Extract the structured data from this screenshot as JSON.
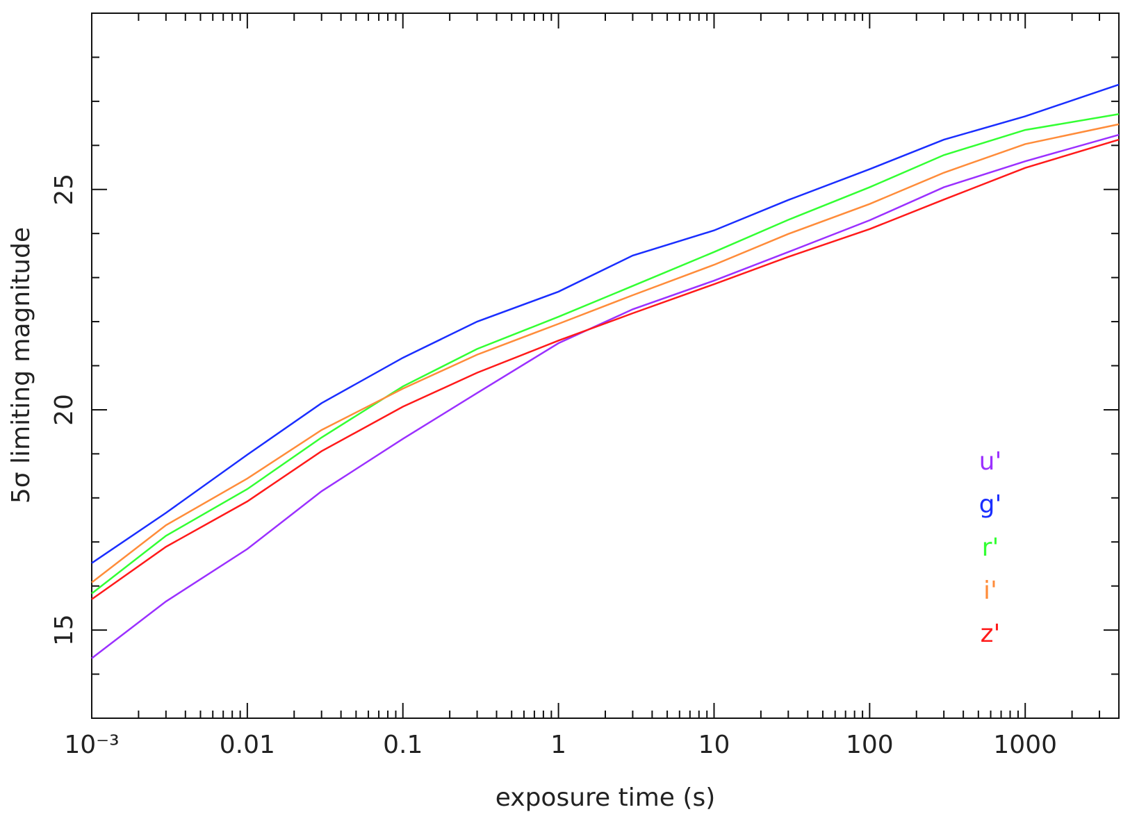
{
  "chart_data": {
    "type": "line",
    "x_label": "exposure time (s)",
    "y_label": "5σ limiting magnitude",
    "x": [
      0.001,
      0.003,
      0.01,
      0.03,
      0.1,
      0.3,
      1,
      3,
      10,
      30,
      100,
      300,
      1000,
      4000
    ],
    "series": [
      {
        "name": "u'",
        "color": "#9b30ff",
        "values": [
          14.36,
          15.65,
          16.84,
          18.15,
          19.34,
          20.38,
          21.51,
          22.28,
          22.93,
          23.58,
          24.3,
          25.05,
          25.64,
          26.24
        ]
      },
      {
        "name": "g'",
        "color": "#1a2eff",
        "values": [
          16.52,
          17.66,
          18.98,
          20.15,
          21.18,
          22.0,
          22.68,
          23.5,
          24.07,
          24.76,
          25.46,
          26.13,
          26.66,
          27.38
        ]
      },
      {
        "name": "r'",
        "color": "#33ff33",
        "values": [
          15.83,
          17.14,
          18.2,
          19.37,
          20.53,
          21.38,
          22.11,
          22.81,
          23.58,
          24.31,
          25.05,
          25.78,
          26.35,
          26.71
        ]
      },
      {
        "name": "i'",
        "color": "#ff8c3a",
        "values": [
          16.08,
          17.38,
          18.44,
          19.54,
          20.48,
          21.25,
          21.95,
          22.6,
          23.29,
          23.99,
          24.67,
          25.38,
          26.03,
          26.48
        ]
      },
      {
        "name": "z'",
        "color": "#ff1a1a",
        "values": [
          15.7,
          16.89,
          17.92,
          19.06,
          20.07,
          20.84,
          21.57,
          22.19,
          22.85,
          23.47,
          24.1,
          24.77,
          25.49,
          26.13
        ]
      }
    ],
    "x_log_scale": true,
    "xlim": [
      0.001,
      4000
    ],
    "xticks": [
      {
        "value": 0.001,
        "label": "10⁻³"
      },
      0.01,
      0.1,
      1,
      10,
      100,
      1000
    ],
    "x_minor_ticks": [
      0.002,
      0.003,
      0.004,
      0.005,
      0.006,
      0.007,
      0.008,
      0.009,
      0.02,
      0.03,
      0.04,
      0.05,
      0.06,
      0.07,
      0.08,
      0.09,
      0.2,
      0.3,
      0.4,
      0.5,
      0.6,
      0.7,
      0.8,
      0.9,
      2,
      3,
      4,
      5,
      6,
      7,
      8,
      9,
      20,
      30,
      40,
      50,
      60,
      70,
      80,
      90,
      200,
      300,
      400,
      500,
      600,
      700,
      800,
      900,
      2000,
      3000
    ],
    "ylim": [
      13,
      29
    ],
    "yticks": [
      15,
      20,
      25
    ],
    "y_minor_ticks": [
      14,
      16,
      17,
      18,
      19,
      21,
      22,
      23,
      24,
      26,
      27,
      28
    ],
    "legend": "lower right",
    "grid": false
  }
}
